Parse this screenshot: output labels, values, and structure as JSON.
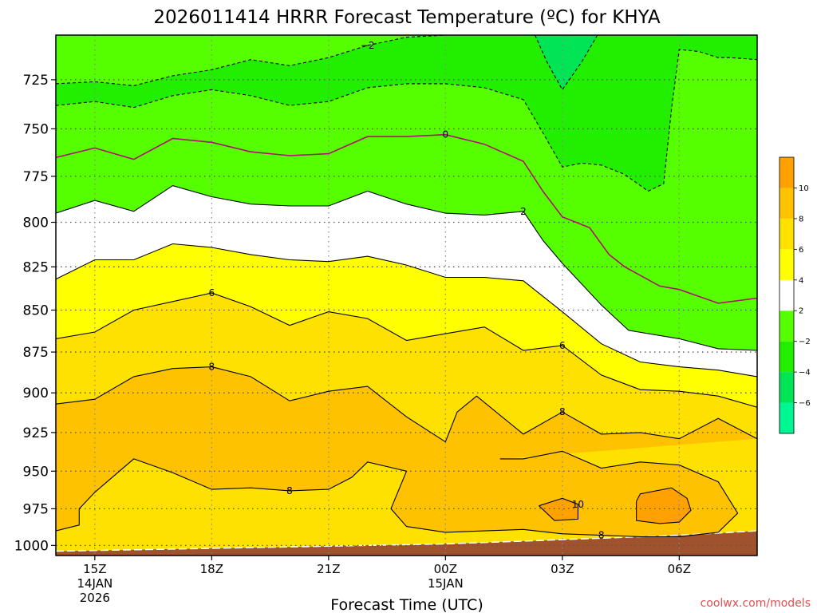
{
  "chart_data": {
    "type": "heatmap",
    "title": "2026011414 HRRR Forecast Temperature (ºC) for KHYA",
    "xlabel": "Forecast Time (UTC)",
    "ylabel": "",
    "x_ticks": [
      {
        "hour": 15,
        "label": "15Z",
        "sub1": "14JAN",
        "sub2": "2026"
      },
      {
        "hour": 18,
        "label": "18Z",
        "sub1": "",
        "sub2": ""
      },
      {
        "hour": 21,
        "label": "21Z",
        "sub1": "",
        "sub2": ""
      },
      {
        "hour": 24,
        "label": "00Z",
        "sub1": "15JAN",
        "sub2": ""
      },
      {
        "hour": 27,
        "label": "03Z",
        "sub1": "",
        "sub2": ""
      },
      {
        "hour": 30,
        "label": "06Z",
        "sub1": "",
        "sub2": ""
      }
    ],
    "xlim": [
      14,
      32
    ],
    "y_ticks": [
      725,
      750,
      775,
      800,
      825,
      850,
      875,
      900,
      925,
      950,
      975,
      1000
    ],
    "ylim": [
      1007,
      703
    ],
    "y_scale": "log-pressure",
    "grid": true,
    "colorbar": {
      "levels": [
        -8,
        -6,
        -4,
        -2,
        2,
        4,
        6,
        8,
        10,
        12
      ],
      "tick_labels": [
        "−6",
        "−4",
        "−2",
        "2",
        "4",
        "6",
        "8",
        "10"
      ],
      "tick_values": [
        -6,
        -4,
        -2,
        2,
        4,
        6,
        8,
        10
      ],
      "colors": [
        "#00f593",
        "#00e456",
        "#22ee00",
        "#55ff00",
        "#ffffff",
        "#ffff00",
        "#ffe100",
        "#ffc200",
        "#ffa100",
        "#ff8400"
      ],
      "placement": "right"
    },
    "contours": [
      {
        "level": -2,
        "label": "−2",
        "color": "#000000",
        "dashed": true,
        "points": [
          [
            14,
            727
          ],
          [
            15,
            726
          ],
          [
            16,
            728
          ],
          [
            17,
            723
          ],
          [
            18,
            720
          ],
          [
            19,
            715
          ],
          [
            20,
            718
          ],
          [
            21,
            714
          ],
          [
            22,
            708
          ],
          [
            23,
            704
          ],
          [
            24,
            703
          ],
          [
            24.6,
            703
          ]
        ]
      },
      {
        "level": -2,
        "label": "",
        "color": "#000000",
        "dashed": true,
        "points": [
          [
            14,
            738
          ],
          [
            15,
            736
          ],
          [
            16,
            739
          ],
          [
            17,
            733
          ],
          [
            18,
            730
          ],
          [
            19,
            733
          ],
          [
            20,
            738
          ],
          [
            21,
            736
          ],
          [
            22,
            729
          ],
          [
            23,
            727
          ],
          [
            24,
            727
          ],
          [
            25,
            729
          ],
          [
            26,
            735
          ],
          [
            26.5,
            752
          ],
          [
            27,
            770
          ],
          [
            27.5,
            768
          ],
          [
            28,
            769
          ],
          [
            28.6,
            774
          ],
          [
            29.2,
            783
          ],
          [
            29.6,
            779
          ],
          [
            29.8,
            740
          ],
          [
            30,
            710
          ],
          [
            30.5,
            711
          ],
          [
            31,
            714
          ],
          [
            31.3,
            714
          ],
          [
            32,
            715
          ]
        ]
      },
      {
        "level": -4,
        "label": "",
        "color": "#000000",
        "dashed": true,
        "points": [
          [
            26.3,
            703
          ],
          [
            26.6,
            716
          ],
          [
            27,
            730
          ],
          [
            27.5,
            716
          ],
          [
            27.9,
            703
          ]
        ]
      },
      {
        "level": 0,
        "label": "0",
        "color": "#b0106e",
        "dashed": false,
        "points": [
          [
            14,
            765
          ],
          [
            15,
            760
          ],
          [
            16,
            766
          ],
          [
            17,
            755
          ],
          [
            18,
            757
          ],
          [
            19,
            762
          ],
          [
            20,
            764
          ],
          [
            21,
            763
          ],
          [
            22,
            754
          ],
          [
            23,
            754
          ],
          [
            24,
            753
          ],
          [
            25,
            758
          ],
          [
            26,
            767
          ],
          [
            26.5,
            783
          ],
          [
            27,
            797
          ],
          [
            27.7,
            803
          ],
          [
            28.2,
            818
          ],
          [
            28.6,
            825
          ],
          [
            29.5,
            836
          ],
          [
            30,
            838
          ],
          [
            31,
            846
          ],
          [
            32,
            843
          ]
        ]
      },
      {
        "level": 2,
        "label": "2",
        "color": "#000000",
        "dashed": false,
        "points": [
          [
            14,
            795
          ],
          [
            15,
            788
          ],
          [
            16,
            794
          ],
          [
            17,
            780
          ],
          [
            18,
            786
          ],
          [
            19,
            790
          ],
          [
            20,
            791
          ],
          [
            21,
            791
          ],
          [
            22,
            783
          ],
          [
            23,
            790
          ],
          [
            24,
            795
          ],
          [
            25,
            796
          ],
          [
            26,
            794
          ],
          [
            26.5,
            810
          ],
          [
            27,
            823
          ],
          [
            28,
            847
          ],
          [
            28.7,
            862
          ],
          [
            30,
            867
          ],
          [
            31,
            873
          ],
          [
            32,
            874
          ]
        ]
      },
      {
        "level": 4,
        "label": "",
        "color": "#000000",
        "dashed": false,
        "points": [
          [
            14,
            832
          ],
          [
            15,
            821
          ],
          [
            16,
            821
          ],
          [
            17,
            812
          ],
          [
            18,
            814
          ],
          [
            19,
            818
          ],
          [
            20,
            821
          ],
          [
            21,
            822
          ],
          [
            22,
            819
          ],
          [
            23,
            824
          ],
          [
            24,
            831
          ],
          [
            25,
            831
          ],
          [
            26,
            833
          ],
          [
            27,
            851
          ],
          [
            28,
            870
          ],
          [
            29,
            881
          ],
          [
            30,
            884
          ],
          [
            31,
            886
          ],
          [
            32,
            890
          ]
        ]
      },
      {
        "level": 6,
        "label": "6",
        "color": "#000000",
        "dashed": false,
        "points": [
          [
            14,
            867
          ],
          [
            15,
            863
          ],
          [
            16,
            850
          ],
          [
            17,
            845
          ],
          [
            18,
            840
          ],
          [
            19,
            848
          ],
          [
            20,
            859
          ],
          [
            21,
            851
          ],
          [
            22,
            855
          ],
          [
            23,
            868
          ],
          [
            24,
            864
          ],
          [
            25,
            860
          ],
          [
            26,
            874
          ],
          [
            27,
            871
          ],
          [
            28,
            889
          ],
          [
            29,
            898
          ],
          [
            30,
            899
          ],
          [
            31,
            902
          ],
          [
            32,
            909
          ]
        ]
      },
      {
        "level": 8,
        "label": "8",
        "color": "#000000",
        "dashed": false,
        "points": [
          [
            14,
            907
          ],
          [
            15,
            904
          ],
          [
            16,
            890
          ],
          [
            17,
            885
          ],
          [
            18,
            884
          ],
          [
            19,
            890
          ],
          [
            20,
            905
          ],
          [
            21,
            899
          ],
          [
            22,
            896
          ],
          [
            23,
            915
          ],
          [
            24,
            931
          ],
          [
            24.3,
            912
          ],
          [
            24.8,
            902
          ],
          [
            25.4,
            914
          ],
          [
            26,
            926
          ],
          [
            27,
            912
          ],
          [
            28,
            926
          ],
          [
            29,
            925
          ],
          [
            30,
            929
          ],
          [
            31,
            916
          ],
          [
            32,
            929
          ]
        ]
      },
      {
        "level": 8,
        "label": "8",
        "color": "#000000",
        "dashed": false,
        "points": [
          [
            14,
            990
          ],
          [
            14.6,
            986
          ],
          [
            14.6,
            975
          ],
          [
            15,
            964
          ],
          [
            16,
            942
          ],
          [
            17,
            951
          ],
          [
            18,
            962
          ],
          [
            19,
            961
          ],
          [
            20,
            963
          ],
          [
            21,
            962
          ],
          [
            21.6,
            954
          ],
          [
            22,
            944
          ],
          [
            23,
            950
          ],
          [
            22.6,
            975
          ],
          [
            23,
            987
          ],
          [
            24,
            991
          ],
          [
            25,
            990
          ],
          [
            26,
            989
          ],
          [
            27,
            992
          ],
          [
            28,
            993
          ],
          [
            29,
            994
          ],
          [
            30,
            994
          ],
          [
            31,
            991
          ],
          [
            31.5,
            978
          ],
          [
            31,
            957
          ],
          [
            30,
            946
          ],
          [
            29,
            944
          ],
          [
            28,
            948
          ],
          [
            27,
            937
          ],
          [
            26,
            942
          ],
          [
            25.4,
            942
          ]
        ]
      },
      {
        "level": 10,
        "label": "10",
        "color": "#000000",
        "dashed": false,
        "points": [
          [
            26.4,
            973
          ],
          [
            27,
            968
          ],
          [
            27.4,
            972
          ],
          [
            27.4,
            982
          ],
          [
            26.8,
            983
          ],
          [
            26.4,
            973
          ]
        ]
      },
      {
        "level": 10,
        "label": "",
        "color": "#000000",
        "dashed": false,
        "points": [
          [
            28.9,
            970
          ],
          [
            29,
            965
          ],
          [
            29.8,
            961
          ],
          [
            30.2,
            968
          ],
          [
            30.3,
            976
          ],
          [
            30,
            984
          ],
          [
            29.5,
            985
          ],
          [
            28.9,
            983
          ],
          [
            28.9,
            970
          ]
        ]
      }
    ],
    "ground_pressure": [
      [
        14,
        1004
      ],
      [
        16,
        1003
      ],
      [
        18,
        1002
      ],
      [
        20,
        1001
      ],
      [
        22,
        1000
      ],
      [
        24,
        999
      ],
      [
        26,
        997
      ],
      [
        28,
        995
      ],
      [
        30,
        993
      ],
      [
        32,
        990
      ]
    ],
    "ground_color": "#a0522d",
    "credit": "coolwx.com/models"
  }
}
